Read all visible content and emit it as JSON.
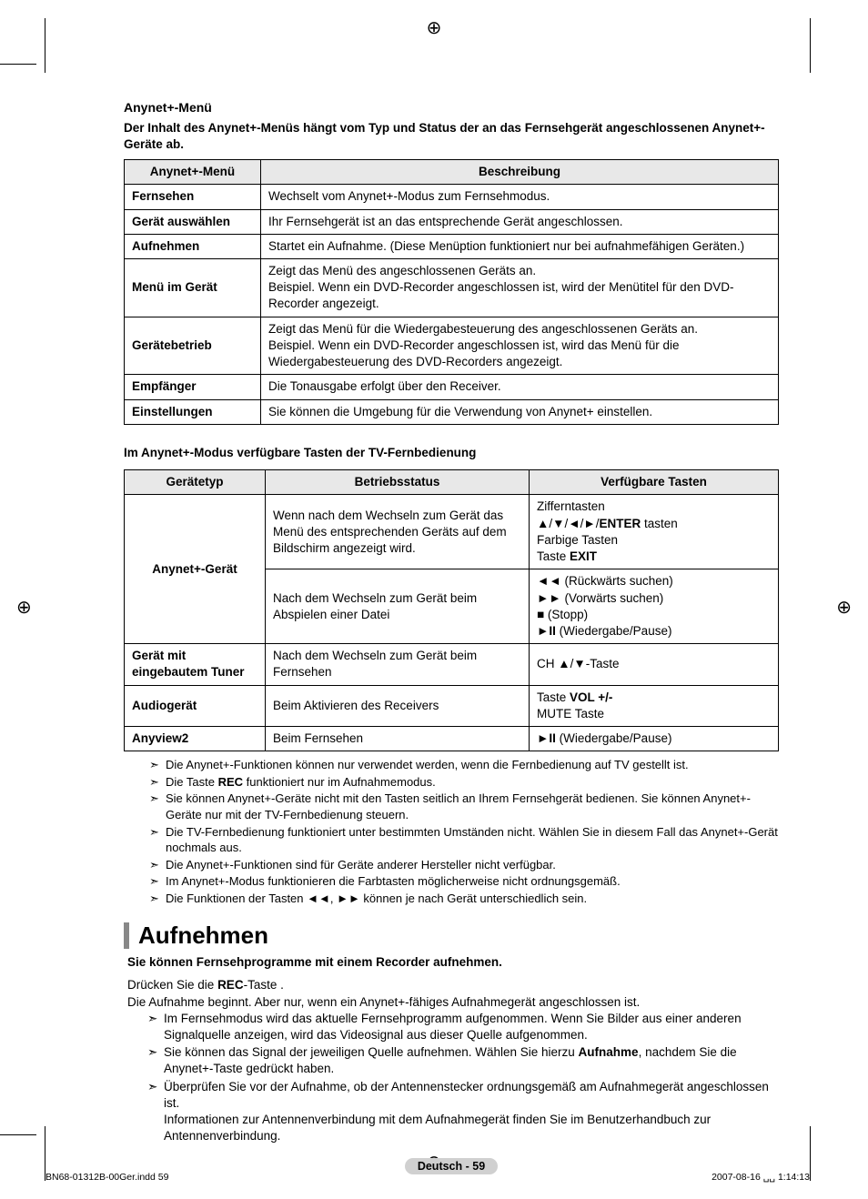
{
  "heading1": "Anynet+-Menü",
  "intro": "Der Inhalt des Anynet+-Menüs hängt vom Typ und Status der an das Fernsehgerät angeschlossenen Anynet+-Geräte ab.",
  "table1": {
    "headers": [
      "Anynet+-Menü",
      "Beschreibung"
    ],
    "rows": [
      [
        "Fernsehen",
        "Wechselt vom Anynet+-Modus zum Fernsehmodus."
      ],
      [
        "Gerät auswählen",
        "Ihr Fernsehgerät ist an das entsprechende Gerät angeschlossen."
      ],
      [
        "Aufnehmen",
        "Startet ein Aufnahme. (Diese Menüption funktioniert nur bei aufnahmefähigen Geräten.)"
      ],
      [
        "Menü im Gerät",
        "Zeigt das Menü des angeschlossenen Geräts an.\nBeispiel. Wenn ein DVD-Recorder angeschlossen ist, wird der Menütitel für den DVD-Recorder angezeigt."
      ],
      [
        "Gerätebetrieb",
        "Zeigt das Menü für die Wiedergabesteuerung des angeschlossenen Geräts an.\nBeispiel. Wenn ein DVD-Recorder angeschlossen ist, wird das Menü für die Wiedergabesteuerung des DVD-Recorders angezeigt."
      ],
      [
        "Empfänger",
        "Die Tonausgabe erfolgt über den Receiver."
      ],
      [
        "Einstellungen",
        "Sie können die Umgebung für die Verwendung von Anynet+ einstellen."
      ]
    ]
  },
  "heading2": "Im Anynet+-Modus verfügbare Tasten der TV-Fernbedienung",
  "table2": {
    "headers": [
      "Gerätetyp",
      "Betriebsstatus",
      "Verfügbare Tasten"
    ],
    "rows": [
      {
        "device": "Anynet+-Gerät",
        "rowspan": 2,
        "status": "Wenn nach dem Wechseln zum Gerät das Menü des entsprechenden Geräts auf dem Bildschirm angezeigt wird.",
        "keys_html": "Zifferntasten<br>▲/▼/◄/►/<b>ENTER</b> tasten<br>Farbige Tasten<br>Taste <b>EXIT</b>"
      },
      {
        "status": "Nach dem Wechseln zum Gerät beim Abspielen einer Datei",
        "keys_html": "◄◄ (Rückwärts suchen)<br>►► (Vorwärts suchen)<br>■ (Stopp)<br>►<b>II</b> (Wiedergabe/Pause)"
      },
      {
        "device": "Gerät mit eingebautem Tuner",
        "rowspan": 1,
        "status": "Nach dem Wechseln zum Gerät beim Fernsehen",
        "keys_html": "CH ▲/▼-Taste"
      },
      {
        "device": "Audiogerät",
        "rowspan": 1,
        "status": "Beim Aktivieren des Receivers",
        "keys_html": "Taste <b>VOL +/-</b><br>MUTE Taste"
      },
      {
        "device": "Anyview2",
        "rowspan": 1,
        "status": "Beim Fernsehen",
        "keys_html": "►<b>II</b> (Wiedergabe/Pause)"
      }
    ]
  },
  "notes1": [
    "Die Anynet+-Funktionen können nur verwendet werden, wenn die Fernbedienung auf TV gestellt ist.",
    "Die Taste <b>REC</b> funktioniert nur im Aufnahmemodus.",
    "Sie können Anynet+-Geräte nicht mit den Tasten seitlich an Ihrem Fernsehgerät bedienen. Sie können Anynet+-Geräte nur mit der TV-Fernbedienung steuern.",
    "Die TV-Fernbedienung funktioniert unter bestimmten Umständen nicht. Wählen Sie in diesem Fall das Anynet+-Gerät nochmals aus.",
    "Die Anynet+-Funktionen sind für Geräte anderer Hersteller nicht verfügbar.",
    "Im Anynet+-Modus funktionieren die Farbtasten möglicherweise nicht ordnungsgemäß.",
    "Die Funktionen der Tasten ◄◄, ►► können je nach Gerät unterschiedlich sein."
  ],
  "section2": {
    "title": "Aufnehmen",
    "sub": "Sie können Fernsehprogramme mit einem Recorder aufnehmen.",
    "l1": "Drücken Sie die <b>REC</b>-Taste .",
    "l2": "Die Aufnahme beginnt. Aber nur, wenn ein Anynet+-fähiges Aufnahmegerät angeschlossen ist.",
    "notes": [
      "Im Fernsehmodus wird das aktuelle Fernsehprogramm aufgenommen. Wenn Sie Bilder aus einer anderen Signalquelle anzeigen, wird das Videosignal aus dieser Quelle aufgenommen.",
      "Sie können das Signal der jeweiligen Quelle aufnehmen. Wählen Sie hierzu <b>Aufnahme</b>, nachdem Sie die Anynet+-Taste gedrückt haben.",
      "Überprüfen Sie vor der Aufnahme, ob der Antennenstecker ordnungsgemäß am Aufnahmegerät angeschlossen ist.<br>Informationen zur Antennenverbindung mit dem Aufnahmegerät finden Sie im Benutzerhandbuch zur Antennenverbindung."
    ]
  },
  "page_label": "Deutsch - 59",
  "footer_left": "BN68-01312B-00Ger.indd   59",
  "footer_right": "2007-08-16   ␣␣ 1:14:13"
}
